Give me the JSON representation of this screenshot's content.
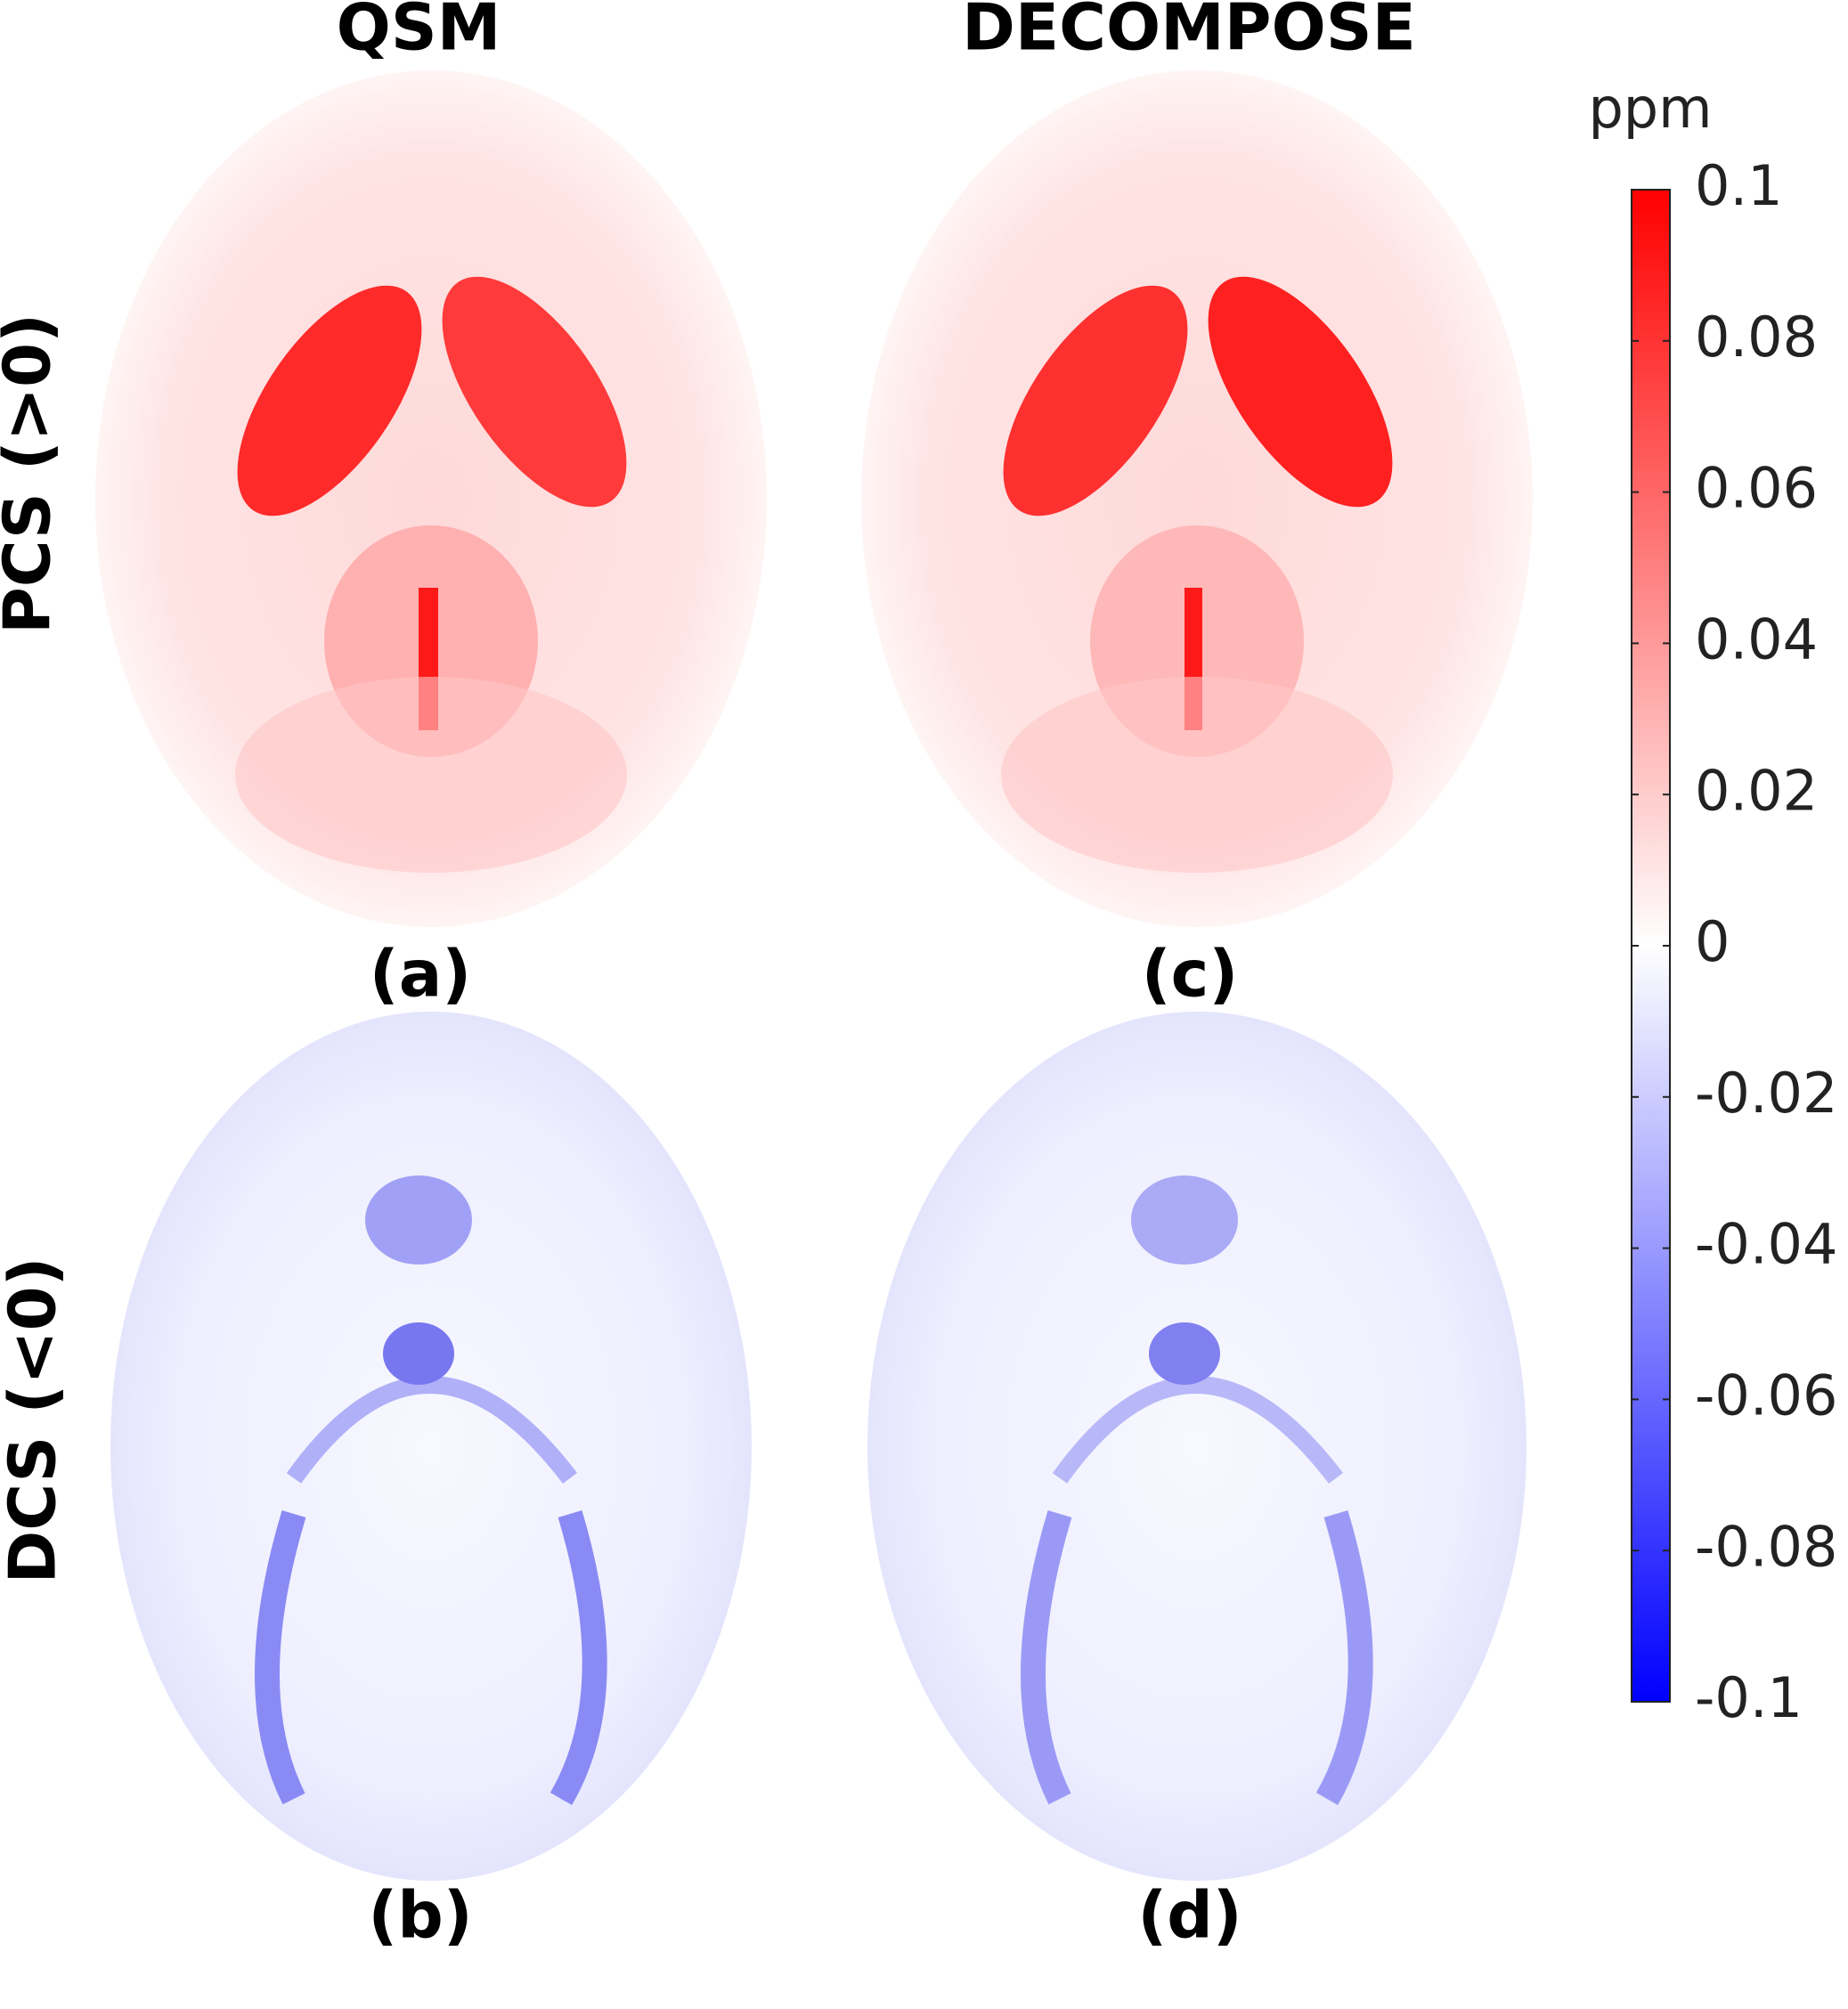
{
  "figure": {
    "columns": [
      "QSM",
      "DECOMPOSE"
    ],
    "rows": [
      "PCS (>0)",
      "DCS (<0)"
    ],
    "panels": [
      "(a)",
      "(b)",
      "(c)",
      "(d)"
    ]
  },
  "chart_data": {
    "type": "colorbar",
    "label": "ppm",
    "ylim": [
      -0.1,
      0.1
    ],
    "yticks": [
      0.1,
      0.08,
      0.06,
      0.04,
      0.02,
      0,
      -0.02,
      -0.04,
      -0.06,
      -0.08,
      -0.1
    ],
    "colors": [
      "#0000ff",
      "#ffffff",
      "#ff0000"
    ]
  }
}
